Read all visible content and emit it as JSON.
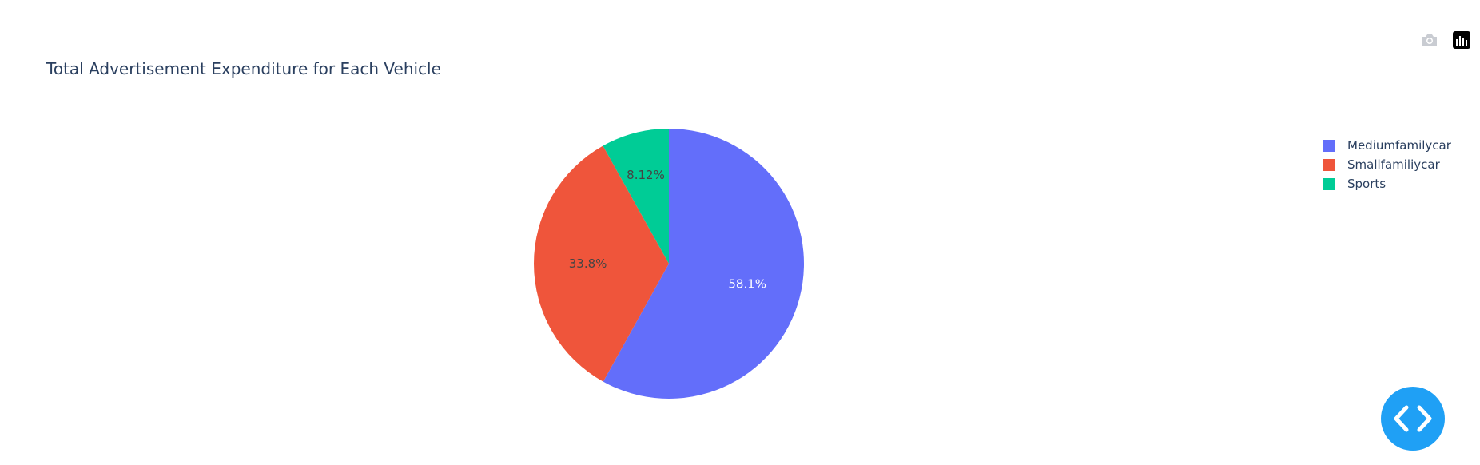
{
  "chart_data": {
    "type": "pie",
    "title": "Total Advertisement Expenditure for Each Vehicle",
    "labels": [
      "Mediumfamilycar",
      "Smallfamiliycar",
      "Sports"
    ],
    "values": [
      58.1,
      33.8,
      8.12
    ],
    "text_labels": [
      "58.1%",
      "33.8%",
      "8.12%"
    ],
    "colors": [
      "#636efa",
      "#ef553b",
      "#00cc96"
    ],
    "label_colors": [
      "#ffffff",
      "#444444",
      "#444444"
    ],
    "legend_position": "top-right",
    "direction": "clockwise",
    "start": "top"
  },
  "modebar": {
    "camera_icon": "camera-icon",
    "chart_icon": "bar-chart-icon"
  },
  "fab": {
    "icon": "code-icon",
    "color": "#1fa0f5"
  }
}
